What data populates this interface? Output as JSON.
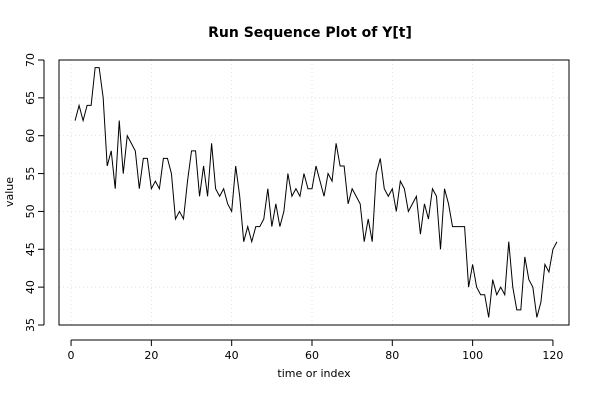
{
  "chart_data": {
    "type": "line",
    "title": "Run Sequence Plot of Y[t]",
    "xlabel": "time or index",
    "ylabel": "value",
    "xlim": [
      -3,
      124
    ],
    "ylim": [
      35,
      70
    ],
    "x_ticks": [
      0,
      20,
      40,
      60,
      80,
      100,
      120
    ],
    "y_ticks": [
      35,
      40,
      45,
      50,
      55,
      60,
      65,
      70
    ],
    "grid": true,
    "series": [
      {
        "x": [
          1,
          2,
          3,
          4,
          5,
          6,
          7,
          8,
          9,
          10,
          11,
          12,
          13,
          14,
          15,
          16,
          17,
          18,
          19,
          20,
          21,
          22,
          23,
          24,
          25,
          26,
          27,
          28,
          29,
          30,
          31,
          32,
          33,
          34,
          35,
          36,
          37,
          38,
          39,
          40,
          41,
          42,
          43,
          44,
          45,
          46,
          47,
          48,
          49,
          50,
          51,
          52,
          53,
          54,
          55,
          56,
          57,
          58,
          59,
          60,
          61,
          62,
          63,
          64,
          65,
          66,
          67,
          68,
          69,
          70,
          71,
          72,
          73,
          74,
          75,
          76,
          77,
          78,
          79,
          80,
          81,
          82,
          83,
          84,
          85,
          86,
          87,
          88,
          89,
          90,
          91,
          92,
          93,
          94,
          95,
          96,
          97,
          98,
          99,
          100,
          101,
          102,
          103,
          104,
          105,
          106,
          107,
          108,
          109,
          110,
          111,
          112,
          113,
          114,
          115,
          116,
          117,
          118,
          119,
          120,
          121
        ],
        "values": [
          62,
          64,
          62,
          64,
          64,
          69,
          69,
          65,
          56,
          58,
          53,
          62,
          55,
          60,
          59,
          58,
          53,
          57,
          57,
          53,
          54,
          53,
          57,
          57,
          55,
          49,
          50,
          49,
          54,
          58,
          58,
          52,
          56,
          52,
          59,
          53,
          52,
          53,
          51,
          50,
          56,
          52,
          46,
          48,
          46,
          48,
          48,
          49,
          53,
          48,
          51,
          48,
          50,
          55,
          52,
          53,
          52,
          55,
          53,
          53,
          56,
          54,
          52,
          55,
          54,
          59,
          56,
          56,
          51,
          53,
          52,
          51,
          46,
          49,
          46,
          55,
          57,
          53,
          52,
          53,
          50,
          54,
          53,
          50,
          51,
          52,
          47,
          51,
          49,
          53,
          52,
          45,
          53,
          51,
          48,
          48,
          48,
          48,
          40,
          43,
          40,
          39,
          39,
          36,
          41,
          39,
          40,
          39,
          46,
          40,
          37,
          37,
          44,
          41,
          40,
          36,
          38,
          43,
          42,
          45,
          46
        ]
      }
    ]
  }
}
